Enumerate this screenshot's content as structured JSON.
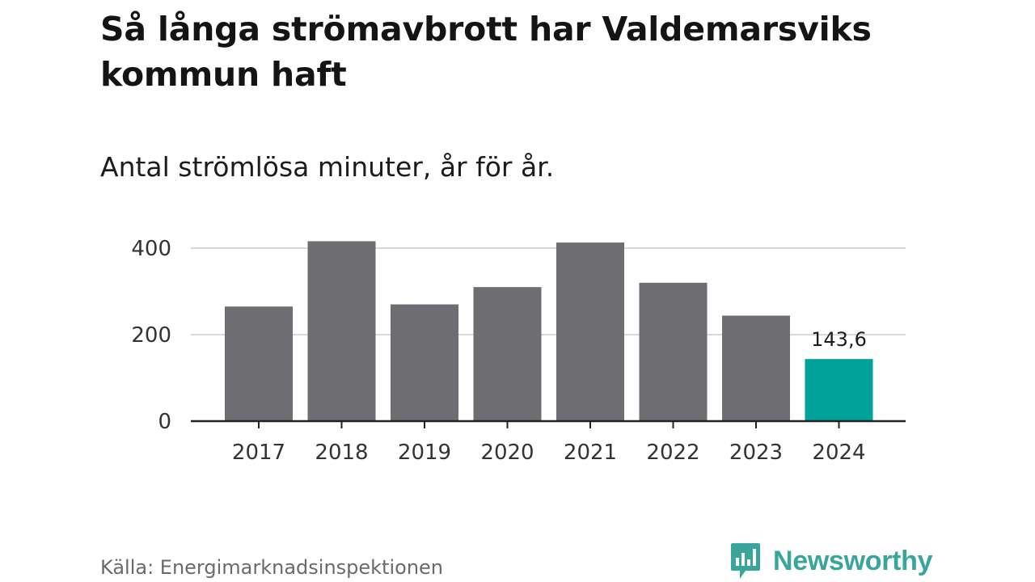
{
  "title": "Så långa strömavbrott har Valdemarsviks kommun haft",
  "subtitle": "Antal strömlösa minuter, år för år.",
  "source": "Källa: Energimarknadsinspektionen",
  "brand": {
    "name": "Newsworthy",
    "color": "#3aa59a"
  },
  "colors": {
    "bar": "#6e6d72",
    "highlight": "#00a29a",
    "grid": "#d9d9d9",
    "axis": "#222222"
  },
  "chart_data": {
    "type": "bar",
    "title": "Så långa strömavbrott har Valdemarsviks kommun haft",
    "subtitle": "Antal strömlösa minuter, år för år.",
    "xlabel": "",
    "ylabel": "",
    "categories": [
      "2017",
      "2018",
      "2019",
      "2020",
      "2021",
      "2022",
      "2023",
      "2024"
    ],
    "values": [
      265,
      416,
      270,
      310,
      413,
      320,
      244,
      143.6
    ],
    "highlight_index": 7,
    "data_labels": [
      {
        "index": 7,
        "text": "143,6"
      }
    ],
    "ylim": [
      0,
      400
    ],
    "yticks": [
      {
        "value": 0,
        "label": "0"
      },
      {
        "value": 200,
        "label": "200"
      },
      {
        "value": 400,
        "label": "400"
      }
    ],
    "grid": true,
    "legend": "none"
  }
}
